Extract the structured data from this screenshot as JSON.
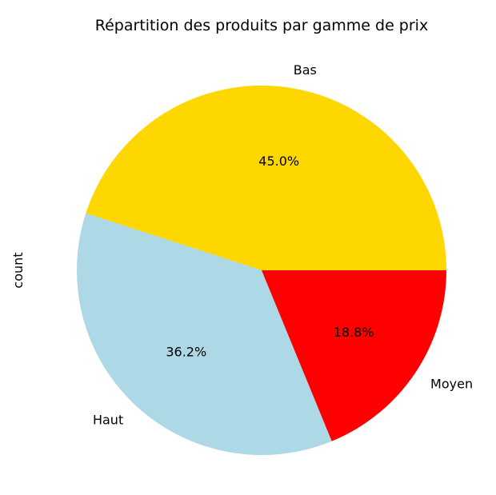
{
  "chart_data": {
    "type": "pie",
    "title": "Répartition des produits par gamme de prix",
    "ylabel": "count",
    "slices": [
      {
        "label": "Bas",
        "value": 45.0,
        "pct_label": "45.0%",
        "color": "#ffd700"
      },
      {
        "label": "Haut",
        "value": 36.2,
        "pct_label": "36.2%",
        "color": "#add8e6"
      },
      {
        "label": "Moyen",
        "value": 18.8,
        "pct_label": "18.8%",
        "color": "#ff0000"
      }
    ],
    "start_angle_deg": 0,
    "direction": "counterclockwise",
    "legend": "none"
  }
}
